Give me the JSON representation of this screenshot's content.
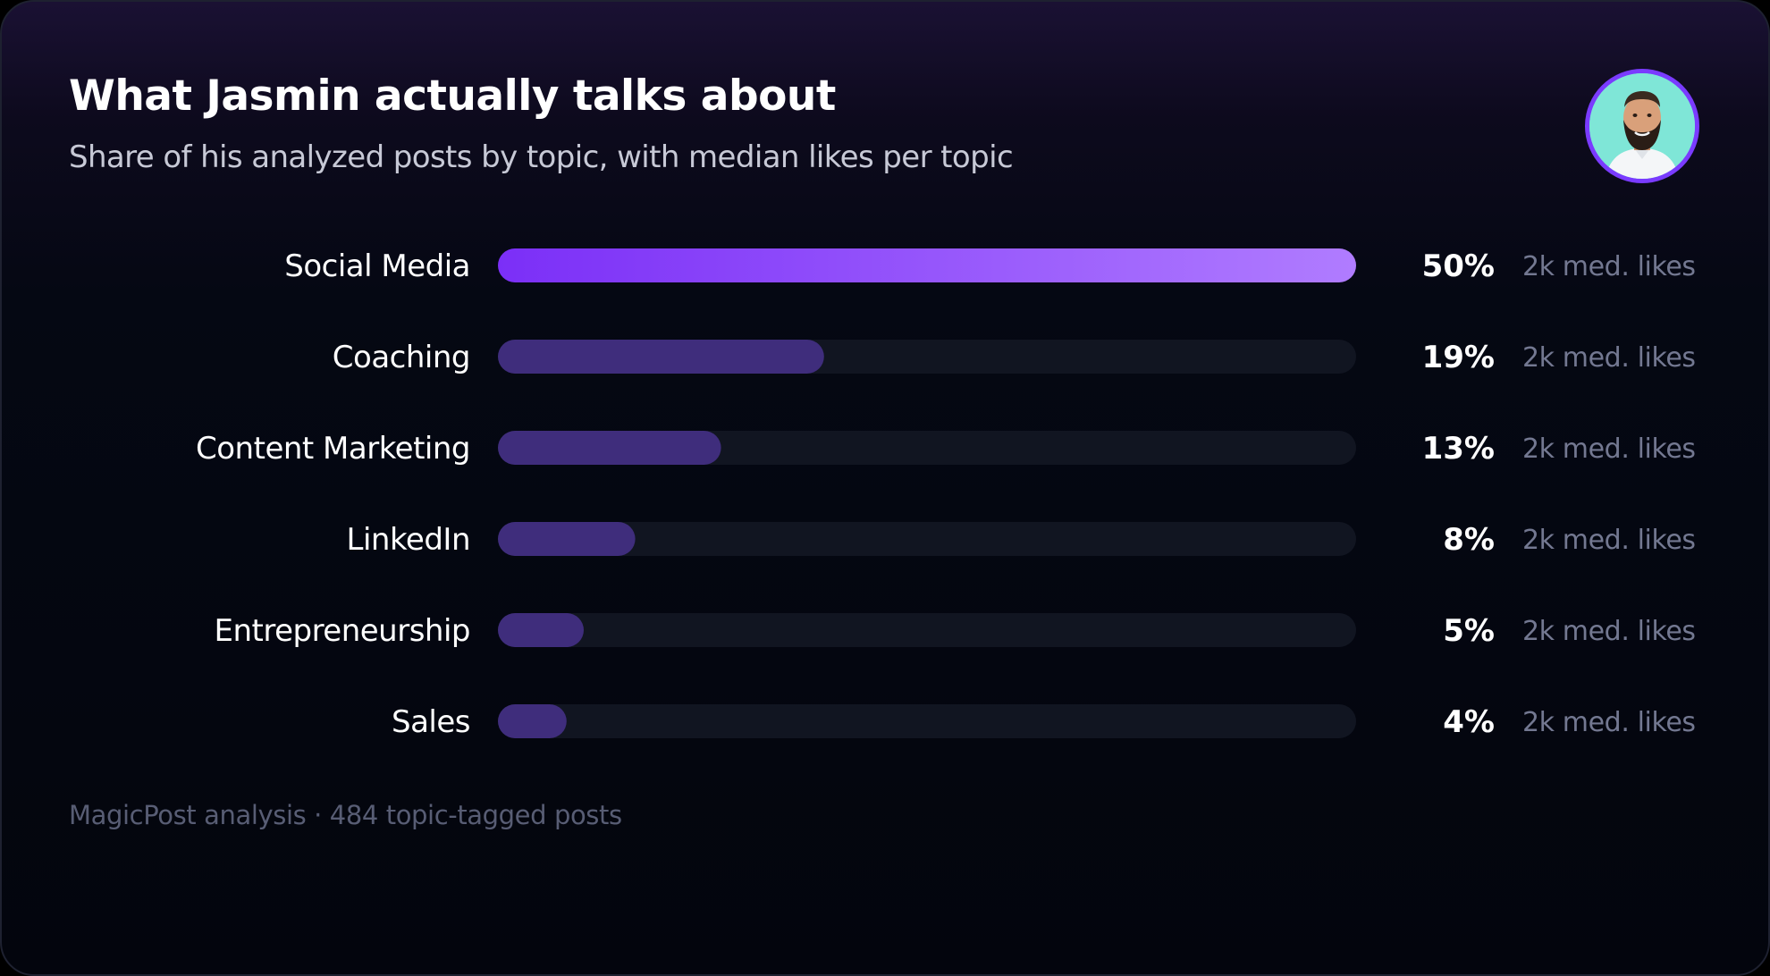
{
  "header": {
    "title": "What Jasmin actually talks about",
    "subtitle": "Share of his analyzed posts by topic, with median likes per topic"
  },
  "colors": {
    "highlight_bar_start": "#7b2ff7",
    "highlight_bar_end": "#b07cff",
    "bar": "#3f2d7c",
    "track": "#111521",
    "avatar_ring": "#7a3bff",
    "avatar_background": "#7fe6d7"
  },
  "chart_data": {
    "type": "bar",
    "orientation": "horizontal",
    "title": "What Jasmin actually talks about",
    "subtitle": "Share of his analyzed posts by topic, with median likes per topic",
    "xlim": [
      0,
      50
    ],
    "grid": false,
    "legend": "none",
    "unit": "%",
    "categories": [
      "Social Media",
      "Coaching",
      "Content Marketing",
      "LinkedIn",
      "Entrepreneurship",
      "Sales"
    ],
    "values": [
      50,
      19,
      13,
      8,
      5,
      4
    ],
    "value_labels": [
      "50%",
      "19%",
      "13%",
      "8%",
      "5%",
      "4%"
    ],
    "median_likes_labels": [
      "2k med. likes",
      "2k med. likes",
      "2k med. likes",
      "2k med. likes",
      "2k med. likes",
      "2k med. likes"
    ],
    "highlighted_category": "Social Media"
  },
  "footer": {
    "source": "MagicPost analysis · 484 topic-tagged posts"
  }
}
